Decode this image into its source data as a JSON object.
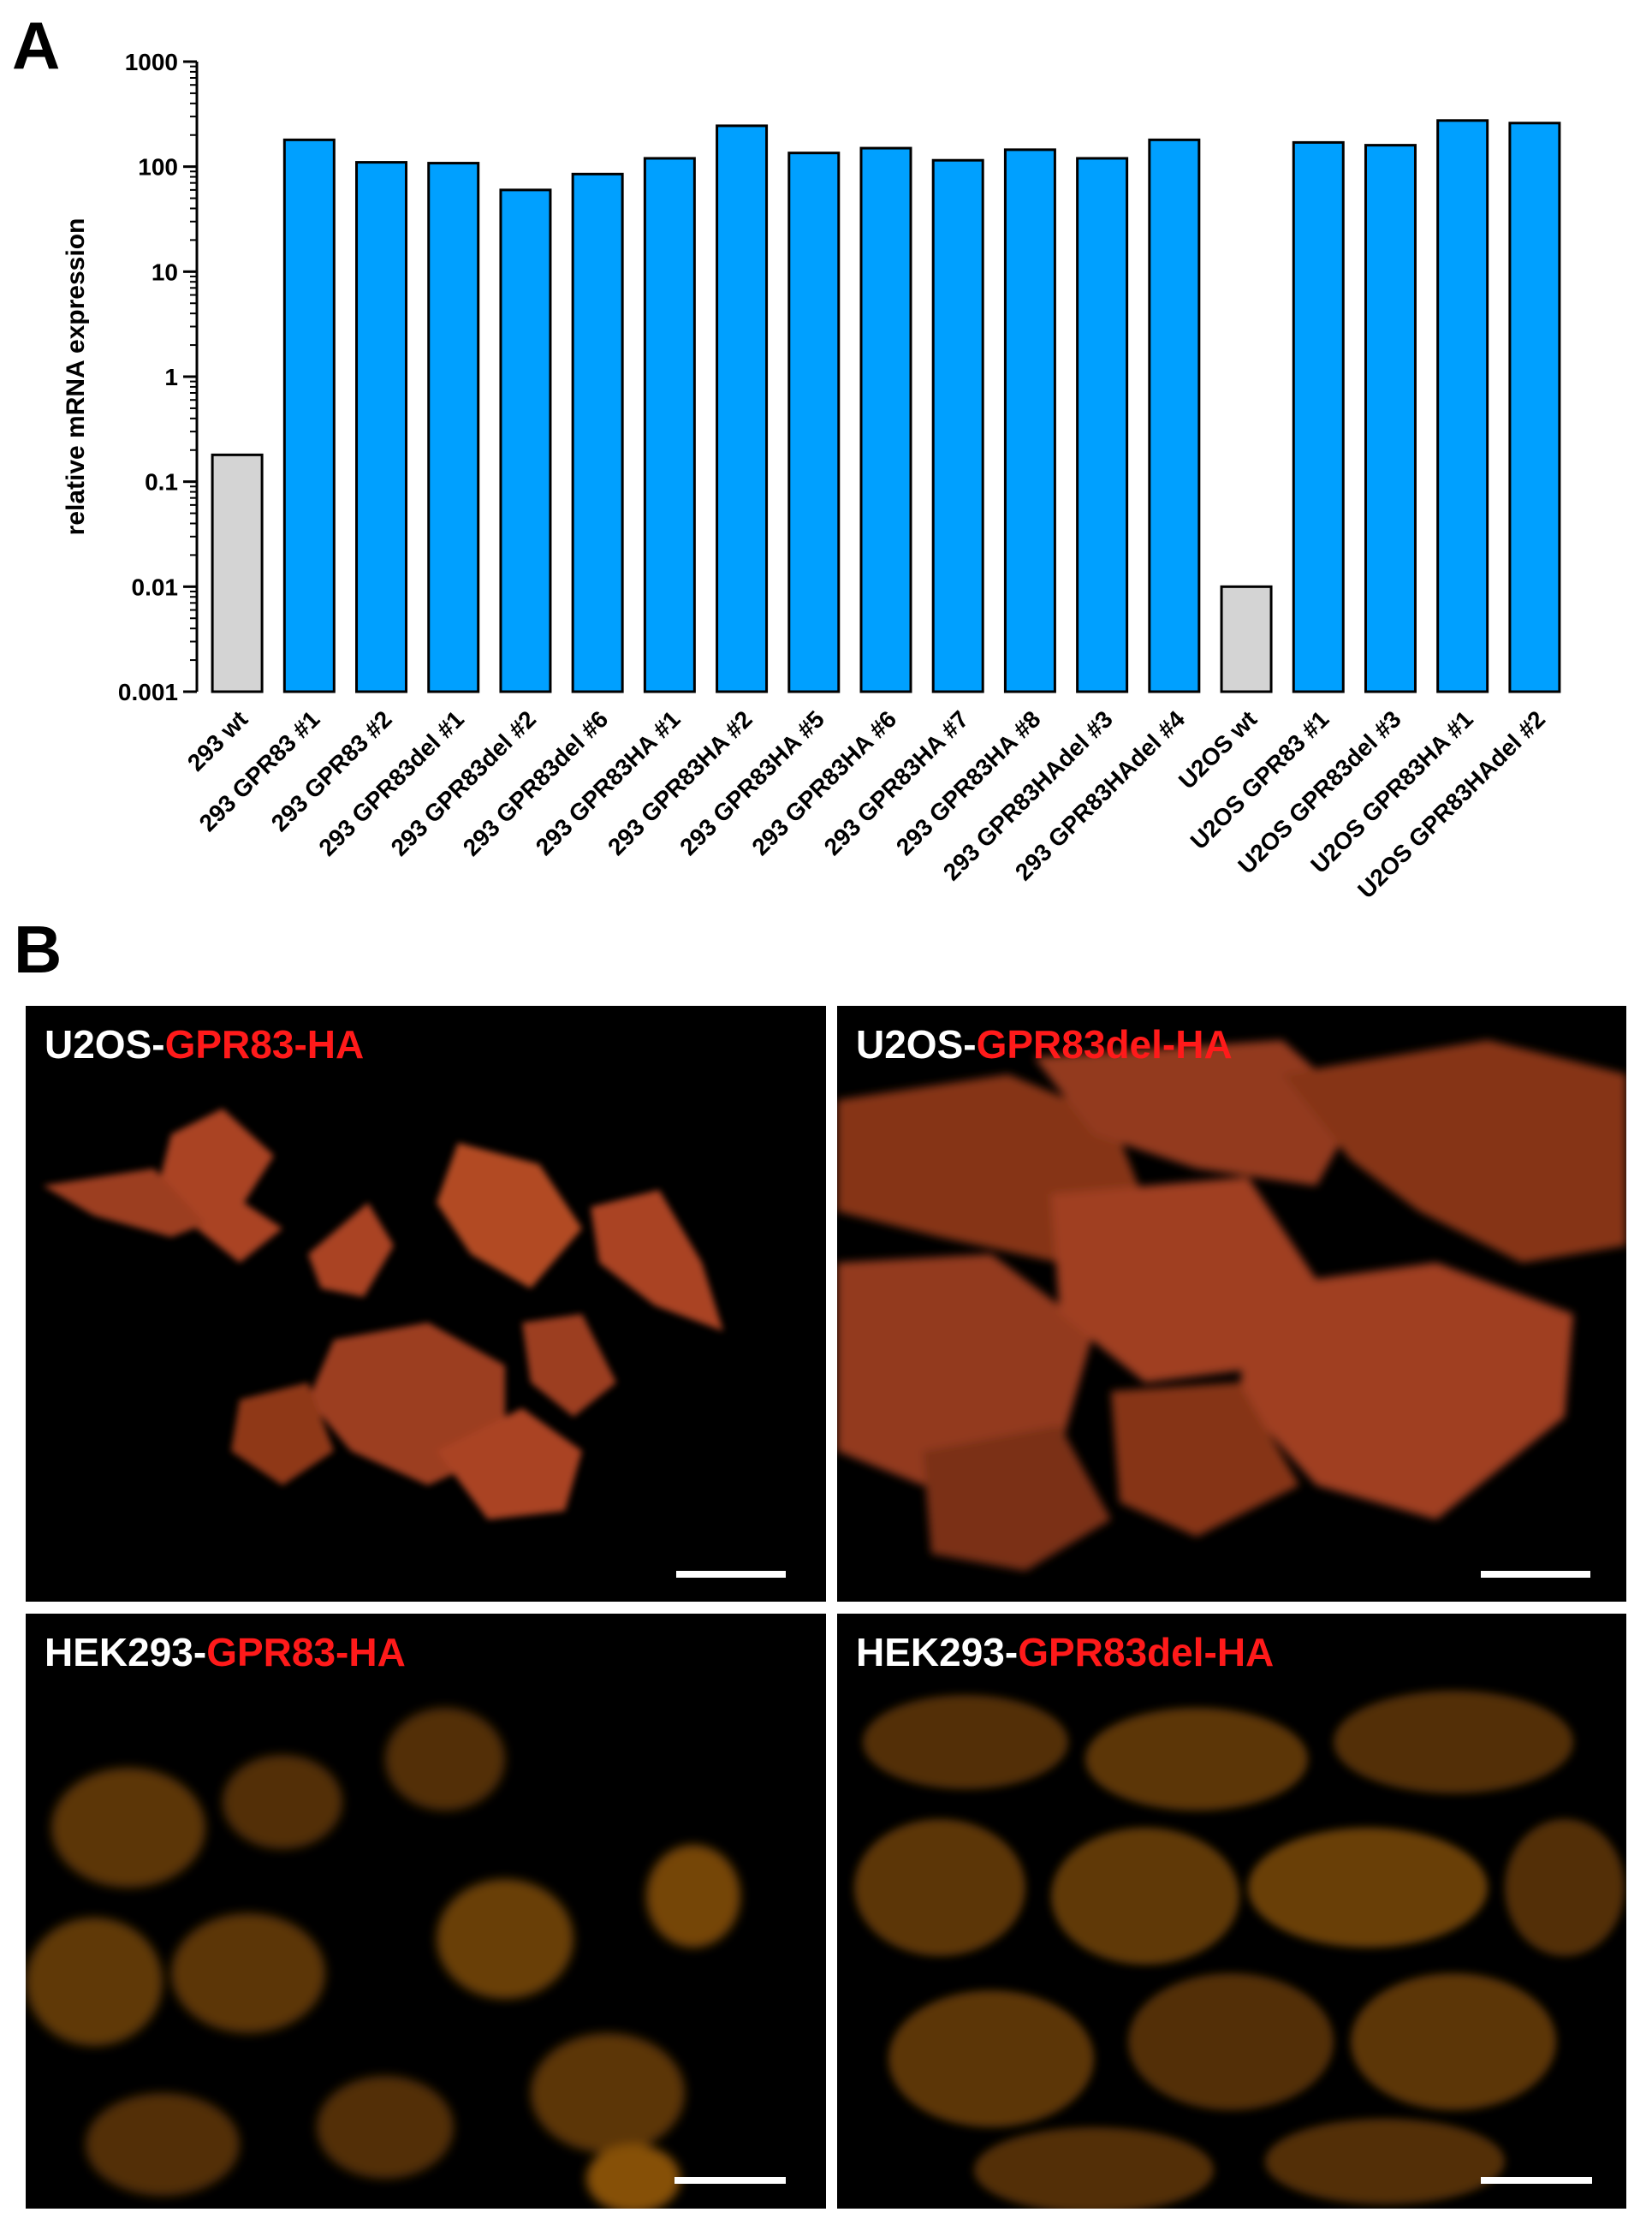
{
  "panels": {
    "a": "A",
    "b": "B"
  },
  "chart_data": {
    "type": "bar",
    "title": "",
    "xlabel": "",
    "ylabel": "relative mRNA expression",
    "yscale": "log",
    "ylim": [
      0.001,
      1000
    ],
    "yticks": [
      "0.001",
      "0.01",
      "0.1",
      "1",
      "10",
      "100",
      "1000"
    ],
    "grid": false,
    "categories": [
      "293 wt",
      "293 GPR83 #1",
      "293 GPR83 #2",
      "293 GPR83del #1",
      "293 GPR83del #2",
      "293 GPR83del #6",
      "293 GPR83HA #1",
      "293 GPR83HA #2",
      "293 GPR83HA #5",
      "293 GPR83HA #6",
      "293 GPR83HA #7",
      "293 GPR83HA #8",
      "293 GPR83HAdel #3",
      "293 GPR83HAdel #4",
      "U2OS wt",
      "U2OS GPR83 #1",
      "U2OS GPR83del #3",
      "U2OS GPR83HA #1",
      "U2OS GPR83HAdel #2"
    ],
    "values": [
      0.18,
      180,
      110,
      108,
      60,
      85,
      120,
      245,
      135,
      150,
      115,
      145,
      120,
      180,
      0.01,
      170,
      160,
      275,
      260
    ],
    "bar_colors": [
      "#d4d4d4",
      "#00a0ff",
      "#00a0ff",
      "#00a0ff",
      "#00a0ff",
      "#00a0ff",
      "#00a0ff",
      "#00a0ff",
      "#00a0ff",
      "#00a0ff",
      "#00a0ff",
      "#00a0ff",
      "#00a0ff",
      "#00a0ff",
      "#d4d4d4",
      "#00a0ff",
      "#00a0ff",
      "#00a0ff",
      "#00a0ff"
    ]
  },
  "micrographs": [
    {
      "prefix": "U2OS-",
      "construct": "GPR83-HA",
      "cell_line": "U2OS",
      "fill": "#d2582a"
    },
    {
      "prefix": "U2OS-",
      "construct": "GPR83del-HA",
      "cell_line": "U2OS",
      "fill": "#d2582a"
    },
    {
      "prefix": "HEK293-",
      "construct": "GPR83-HA",
      "cell_line": "HEK293",
      "fill": "#e0860c"
    },
    {
      "prefix": "HEK293-",
      "construct": "GPR83del-HA",
      "cell_line": "HEK293",
      "fill": "#e0860c"
    }
  ],
  "colors": {
    "label_prefix": "#ffffff",
    "label_construct": "#ff1a1a",
    "background": "#000000",
    "scale_bar": "#ffffff"
  }
}
